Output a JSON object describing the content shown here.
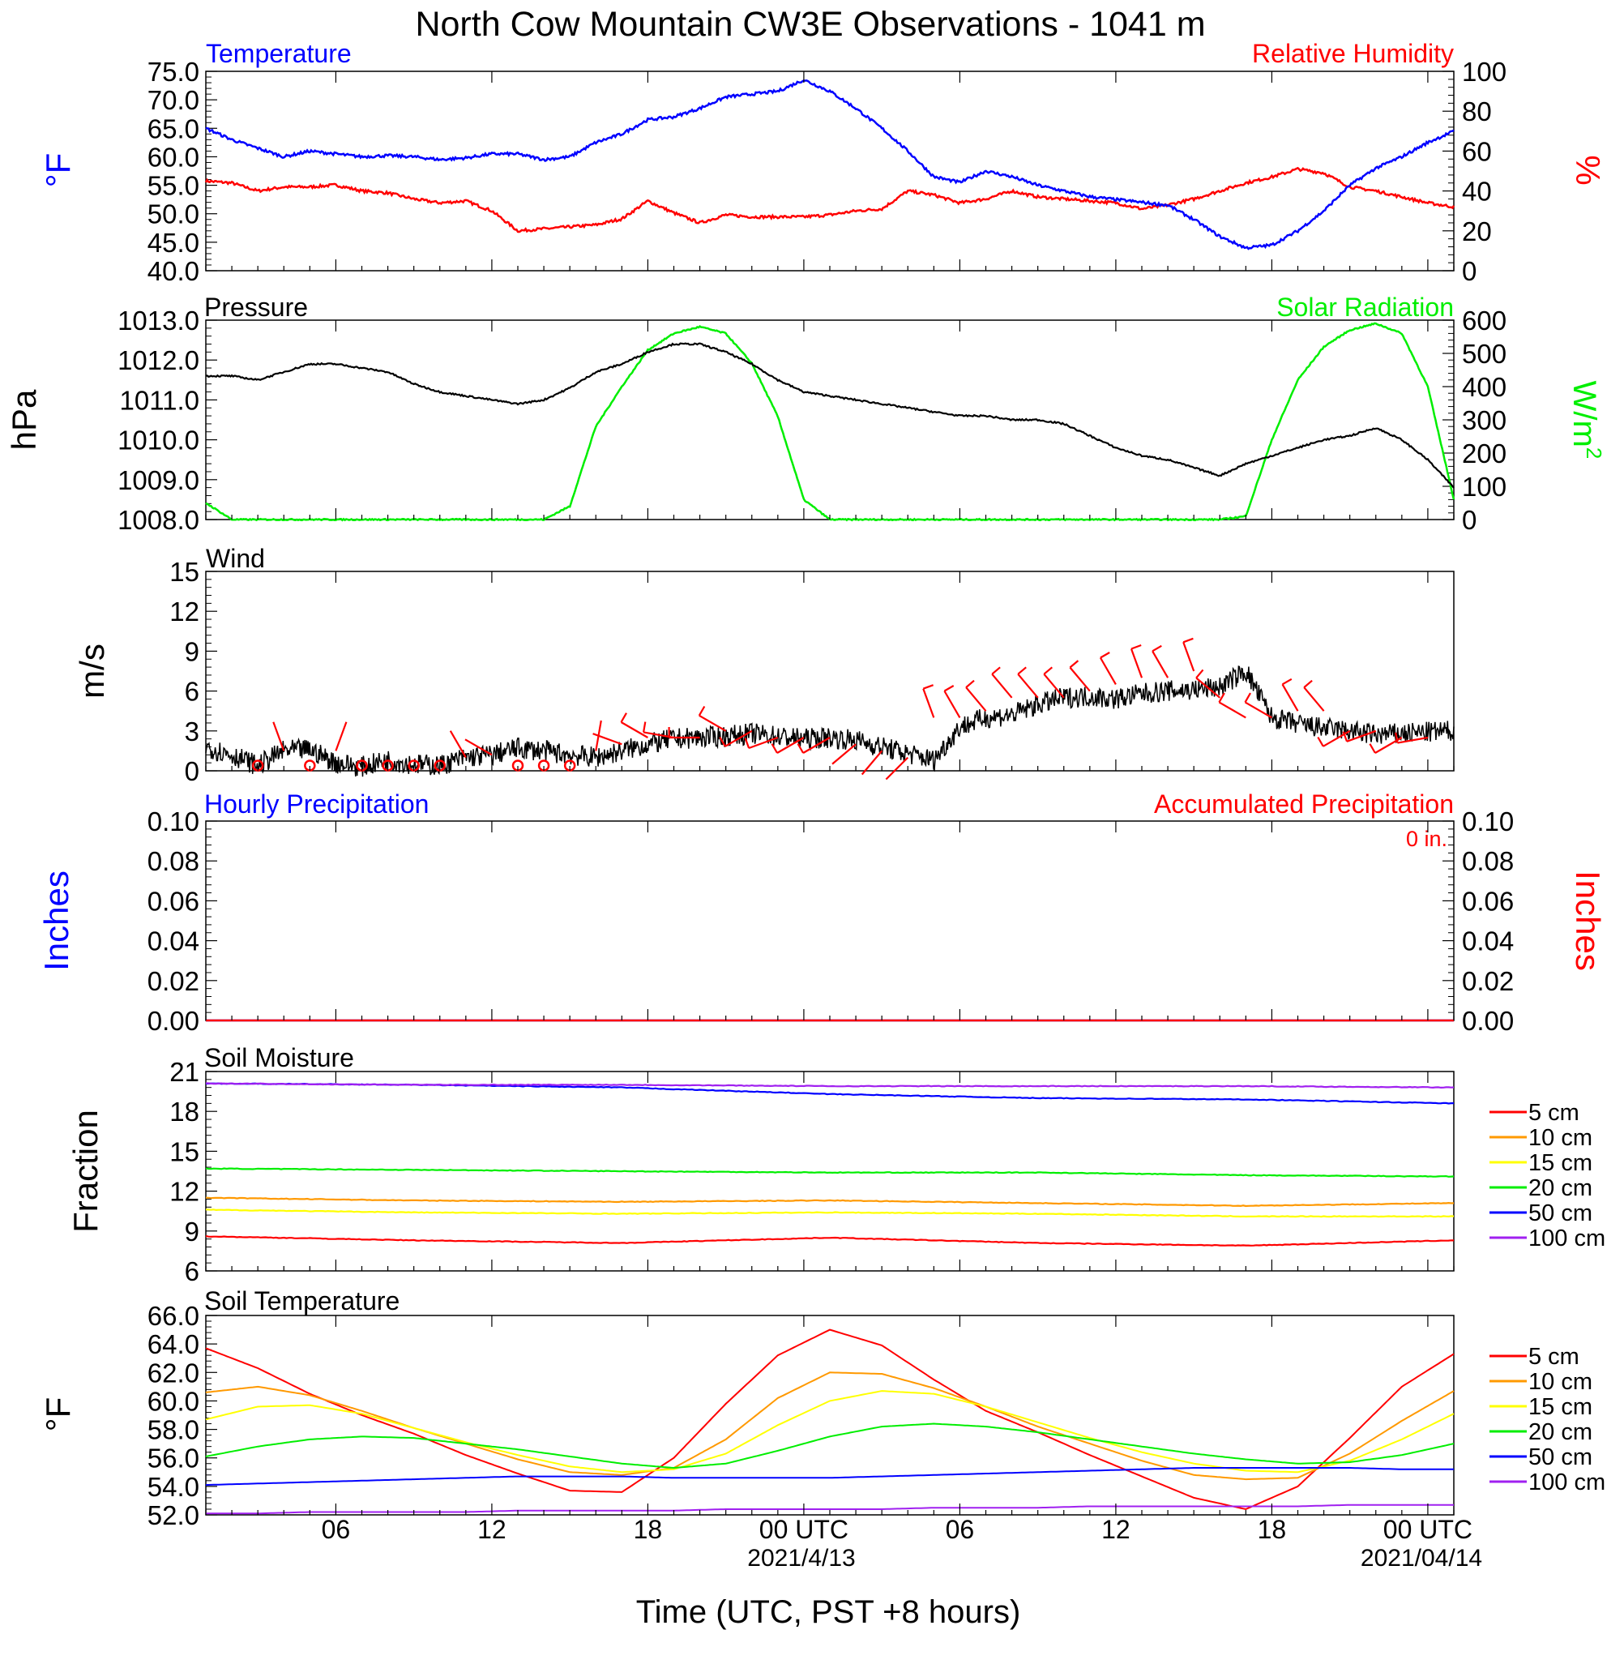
{
  "figure": {
    "title": "North Cow Mountain CW3E Observations - 1041 m",
    "xlabel": "Time (UTC, PST +8 hours)",
    "xticks": [
      "06",
      "12",
      "18",
      "00 UTC",
      "06",
      "12",
      "18",
      "00 UTC"
    ],
    "dates": [
      "2021/4/13",
      "2021/04/14"
    ],
    "colors": {
      "red": "#ff0000",
      "orange": "#ff9900",
      "yellow": "#ffff00",
      "green": "#00ee00",
      "blue": "#0000ff",
      "purple": "#a020f0",
      "black": "#000000"
    }
  },
  "chart_data": [
    {
      "type": "line",
      "panel": "temperature-humidity",
      "title_left": "Temperature",
      "title_right": "Relative Humidity",
      "ylabel_left": "°F",
      "ylabel_right": "%",
      "ylim_left": [
        40,
        75
      ],
      "ylim_right": [
        0,
        100
      ],
      "yticks_left": [
        "75.0",
        "70.0",
        "65.0",
        "60.0",
        "55.0",
        "50.0",
        "45.0",
        "40.0"
      ],
      "yticks_right": [
        "100",
        "80",
        "60",
        "40",
        "20",
        "0"
      ],
      "x_hours": [
        1,
        2,
        3,
        4,
        5,
        6,
        7,
        8,
        9,
        10,
        11,
        12,
        13,
        14,
        15,
        16,
        17,
        18,
        19,
        20,
        21,
        22,
        23,
        24,
        25,
        26,
        27,
        28,
        29,
        30,
        31,
        32,
        33,
        34,
        35,
        36,
        37,
        38,
        39,
        40,
        41,
        42,
        43,
        44,
        45,
        46,
        47,
        48,
        49
      ],
      "series": [
        {
          "name": "Temperature",
          "axis": "left",
          "color": "#0000ff",
          "values": [
            65,
            63,
            61.5,
            60,
            61,
            60.5,
            60,
            60.2,
            60,
            59.5,
            59.8,
            60.5,
            60.5,
            59.5,
            60,
            62.5,
            64,
            66.5,
            67,
            68.5,
            70.5,
            71,
            71.5,
            73.5,
            71.5,
            68.5,
            65,
            61,
            56.5,
            55.5,
            57.5,
            56.5,
            55,
            54,
            53,
            52.5,
            52,
            51.5,
            49,
            46,
            44,
            44.5,
            47,
            50.5,
            55,
            58,
            60,
            62.5,
            64.5
          ]
        },
        {
          "name": "Relative Humidity",
          "axis": "right",
          "color": "#ff0000",
          "values": [
            45,
            44,
            40,
            42,
            42,
            43,
            40,
            39,
            36,
            34,
            35,
            30,
            20,
            21,
            22,
            23,
            26,
            35,
            29,
            24,
            28,
            27,
            27,
            27,
            28,
            30,
            31,
            40,
            38,
            34,
            36,
            40,
            37,
            36,
            35,
            34,
            31,
            33,
            36,
            40,
            44,
            47,
            51,
            49,
            42,
            40,
            37,
            34,
            32
          ]
        }
      ]
    },
    {
      "type": "line",
      "panel": "pressure-solar",
      "title_left": "Pressure",
      "title_right": "Solar Radiation",
      "ylabel_left": "hPa",
      "ylabel_right": "W/m",
      "ylabel_right_sup": "2",
      "ylim_left": [
        1008,
        1013
      ],
      "ylim_right": [
        0,
        600
      ],
      "yticks_left": [
        "1013.0",
        "1012.0",
        "1011.0",
        "1010.0",
        "1009.0",
        "1008.0"
      ],
      "yticks_right": [
        "600",
        "500",
        "400",
        "300",
        "200",
        "100",
        "0"
      ],
      "x_hours": [
        1,
        2,
        3,
        4,
        5,
        6,
        7,
        8,
        9,
        10,
        11,
        12,
        13,
        14,
        15,
        16,
        17,
        18,
        19,
        20,
        21,
        22,
        23,
        24,
        25,
        26,
        27,
        28,
        29,
        30,
        31,
        32,
        33,
        34,
        35,
        36,
        37,
        38,
        39,
        40,
        41,
        42,
        43,
        44,
        45,
        46,
        47,
        48,
        49
      ],
      "series": [
        {
          "name": "Pressure",
          "axis": "left",
          "color": "#000000",
          "values": [
            1011.6,
            1011.6,
            1011.5,
            1011.7,
            1011.9,
            1011.9,
            1011.8,
            1011.7,
            1011.4,
            1011.2,
            1011.1,
            1011.0,
            1010.9,
            1011.0,
            1011.3,
            1011.7,
            1011.9,
            1012.2,
            1012.4,
            1012.4,
            1012.2,
            1011.9,
            1011.5,
            1011.2,
            1011.1,
            1011.0,
            1010.9,
            1010.8,
            1010.7,
            1010.6,
            1010.6,
            1010.5,
            1010.5,
            1010.4,
            1010.1,
            1009.8,
            1009.6,
            1009.5,
            1009.3,
            1009.1,
            1009.4,
            1009.6,
            1009.8,
            1010.0,
            1010.1,
            1010.3,
            1010.0,
            1009.5,
            1008.8
          ]
        },
        {
          "name": "Solar Radiation",
          "axis": "right",
          "color": "#00ee00",
          "values": [
            50,
            0,
            0,
            0,
            0,
            0,
            0,
            0,
            0,
            0,
            0,
            0,
            0,
            0,
            40,
            280,
            400,
            510,
            560,
            580,
            560,
            470,
            310,
            60,
            0,
            0,
            0,
            0,
            0,
            0,
            0,
            0,
            0,
            0,
            0,
            0,
            0,
            0,
            0,
            0,
            10,
            240,
            420,
            520,
            570,
            590,
            560,
            400,
            60
          ]
        }
      ]
    },
    {
      "type": "line",
      "panel": "wind",
      "title_left": "Wind",
      "ylabel": "m/s",
      "ylim": [
        0,
        15
      ],
      "yticks": [
        "15",
        "12",
        "9",
        "6",
        "3",
        "0"
      ],
      "x_hours": [
        1,
        2,
        3,
        4,
        5,
        6,
        7,
        8,
        9,
        10,
        11,
        12,
        13,
        14,
        15,
        16,
        17,
        18,
        19,
        20,
        21,
        22,
        23,
        24,
        25,
        26,
        27,
        28,
        29,
        30,
        31,
        32,
        33,
        34,
        35,
        36,
        37,
        38,
        39,
        40,
        41,
        42,
        43,
        44,
        45,
        46,
        47,
        48,
        49
      ],
      "series": [
        {
          "name": "",
          "color": "#000000",
          "values": [
            1.8,
            1.2,
            0.4,
            1.5,
            1.6,
            0.6,
            0.3,
            0.8,
            0.5,
            0.4,
            1.0,
            1.2,
            1.7,
            1.5,
            1.2,
            1.0,
            1.5,
            2.0,
            2.4,
            2.5,
            2.6,
            2.8,
            2.6,
            2.4,
            2.5,
            2.3,
            1.8,
            1.3,
            0.8,
            3.3,
            4.0,
            4.2,
            5.0,
            5.5,
            5.6,
            5.4,
            5.8,
            6.0,
            6.1,
            6.3,
            7.5,
            4.0,
            3.5,
            3.2,
            3.0,
            2.7,
            2.8,
            2.9,
            3.0
          ]
        }
      ],
      "barbs_calm_hours": [
        3,
        5,
        7,
        8,
        9,
        10,
        13,
        14,
        15
      ],
      "barbs": [
        {
          "hour": 4,
          "speed": 1.5,
          "dir": 340
        },
        {
          "hour": 6,
          "speed": 1.5,
          "dir": 20
        },
        {
          "hour": 11,
          "speed": 1.0,
          "dir": 330
        },
        {
          "hour": 12,
          "speed": 1.2,
          "dir": 300
        },
        {
          "hour": 16,
          "speed": 1.5,
          "dir": 10
        },
        {
          "hour": 17,
          "speed": 2.0,
          "dir": 290
        },
        {
          "hour": 18,
          "speed": 2.5,
          "dir": 300
        },
        {
          "hour": 19,
          "speed": 2.5,
          "dir": 280
        },
        {
          "hour": 20,
          "speed": 2.5,
          "dir": 270
        },
        {
          "hour": 21,
          "speed": 3.0,
          "dir": 300
        },
        {
          "hour": 22,
          "speed": 3.0,
          "dir": 240
        },
        {
          "hour": 23,
          "speed": 2.5,
          "dir": 250
        },
        {
          "hour": 24,
          "speed": 2.5,
          "dir": 240
        },
        {
          "hour": 25,
          "speed": 2.5,
          "dir": 240
        },
        {
          "hour": 26,
          "speed": 2.0,
          "dir": 230
        },
        {
          "hour": 27,
          "speed": 1.5,
          "dir": 220
        },
        {
          "hour": 28,
          "speed": 1.0,
          "dir": 225
        },
        {
          "hour": 29,
          "speed": 4.0,
          "dir": 340
        },
        {
          "hour": 30,
          "speed": 4.0,
          "dir": 330
        },
        {
          "hour": 31,
          "speed": 4.5,
          "dir": 320
        },
        {
          "hour": 32,
          "speed": 5.5,
          "dir": 320
        },
        {
          "hour": 33,
          "speed": 5.5,
          "dir": 320
        },
        {
          "hour": 34,
          "speed": 5.5,
          "dir": 320
        },
        {
          "hour": 35,
          "speed": 6.0,
          "dir": 320
        },
        {
          "hour": 36,
          "speed": 6.5,
          "dir": 330
        },
        {
          "hour": 37,
          "speed": 7.0,
          "dir": 340
        },
        {
          "hour": 38,
          "speed": 7.0,
          "dir": 330
        },
        {
          "hour": 39,
          "speed": 7.5,
          "dir": 340
        },
        {
          "hour": 40,
          "speed": 5.5,
          "dir": 310
        },
        {
          "hour": 41,
          "speed": 4.0,
          "dir": 300
        },
        {
          "hour": 42,
          "speed": 4.0,
          "dir": 300
        },
        {
          "hour": 43,
          "speed": 4.5,
          "dir": 330
        },
        {
          "hour": 44,
          "speed": 4.5,
          "dir": 320
        },
        {
          "hour": 45,
          "speed": 3.0,
          "dir": 240
        },
        {
          "hour": 46,
          "speed": 3.0,
          "dir": 250
        },
        {
          "hour": 47,
          "speed": 2.5,
          "dir": 240
        },
        {
          "hour": 48,
          "speed": 2.5,
          "dir": 260
        }
      ]
    },
    {
      "type": "line",
      "panel": "precipitation",
      "title_left": "Hourly Precipitation",
      "title_right": "Accumulated Precipitation",
      "accum_label": "0 in.",
      "ylabel_left": "Inches",
      "ylabel_right": "Inches",
      "ylim": [
        0,
        0.1
      ],
      "yticks": [
        "0.10",
        "0.08",
        "0.06",
        "0.04",
        "0.02",
        "0.00"
      ],
      "x_hours": [
        1,
        49
      ],
      "series": [
        {
          "name": "Hourly Precipitation",
          "color": "#0000ff",
          "values": [
            0,
            0
          ]
        },
        {
          "name": "Accumulated Precipitation",
          "color": "#ff0000",
          "values": [
            0,
            0
          ]
        }
      ]
    },
    {
      "type": "line",
      "panel": "soil-moisture",
      "title_left": "Soil Moisture",
      "ylabel": "Fraction",
      "ylim": [
        6,
        21
      ],
      "yticks": [
        "21",
        "18",
        "15",
        "12",
        "9",
        "6"
      ],
      "x_hours": [
        1,
        9,
        17,
        25,
        33,
        41,
        49
      ],
      "series": [
        {
          "name": "5 cm",
          "color": "#ff0000",
          "values": [
            8.6,
            8.3,
            8.1,
            8.5,
            8.1,
            7.9,
            8.3
          ]
        },
        {
          "name": "10 cm",
          "color": "#ff9900",
          "values": [
            11.5,
            11.3,
            11.2,
            11.3,
            11.1,
            10.9,
            11.1
          ]
        },
        {
          "name": "15 cm",
          "color": "#ffff00",
          "values": [
            10.6,
            10.4,
            10.3,
            10.4,
            10.3,
            10.1,
            10.1
          ]
        },
        {
          "name": "20 cm",
          "color": "#00ee00",
          "values": [
            13.7,
            13.6,
            13.5,
            13.4,
            13.4,
            13.2,
            13.1
          ]
        },
        {
          "name": "50 cm",
          "color": "#0000ff",
          "values": [
            20.1,
            20.0,
            19.8,
            19.3,
            19.0,
            18.9,
            18.6
          ]
        },
        {
          "name": "100 cm",
          "color": "#a020f0",
          "values": [
            20.1,
            20.0,
            20.0,
            19.9,
            19.9,
            19.9,
            19.8
          ]
        }
      ]
    },
    {
      "type": "line",
      "panel": "soil-temperature",
      "title_left": "Soil Temperature",
      "ylabel": "°F",
      "ylim": [
        52,
        66
      ],
      "yticks": [
        "66.0",
        "64.0",
        "62.0",
        "60.0",
        "58.0",
        "56.0",
        "54.0",
        "52.0"
      ],
      "x_hours": [
        1,
        3,
        5,
        7,
        9,
        11,
        13,
        15,
        17,
        19,
        21,
        23,
        25,
        27,
        29,
        31,
        33,
        35,
        37,
        39,
        41,
        43,
        45,
        47,
        49
      ],
      "series": [
        {
          "name": "5 cm",
          "color": "#ff0000",
          "values": [
            63.7,
            62.3,
            60.5,
            59.0,
            57.7,
            56.2,
            54.9,
            53.7,
            53.6,
            56.0,
            59.8,
            63.2,
            65.0,
            63.9,
            61.5,
            59.3,
            57.8,
            56.2,
            54.7,
            53.2,
            52.4,
            54.0,
            57.4,
            61.0,
            63.3
          ]
        },
        {
          "name": "10 cm",
          "color": "#ff9900",
          "values": [
            60.6,
            61.0,
            60.4,
            59.3,
            58.1,
            57.0,
            55.9,
            55.0,
            54.8,
            55.3,
            57.3,
            60.2,
            62.0,
            61.9,
            60.9,
            59.6,
            58.2,
            57.0,
            55.8,
            54.8,
            54.5,
            54.6,
            56.3,
            58.6,
            60.7
          ]
        },
        {
          "name": "15 cm",
          "color": "#ffff00",
          "values": [
            58.7,
            59.6,
            59.7,
            59.1,
            58.1,
            57.1,
            56.2,
            55.4,
            55.0,
            55.2,
            56.3,
            58.3,
            60.0,
            60.7,
            60.5,
            59.6,
            58.5,
            57.4,
            56.4,
            55.6,
            55.1,
            55.0,
            55.8,
            57.3,
            59.1
          ]
        },
        {
          "name": "20 cm",
          "color": "#00ee00",
          "values": [
            56.1,
            56.8,
            57.3,
            57.5,
            57.4,
            57.0,
            56.6,
            56.1,
            55.6,
            55.3,
            55.6,
            56.5,
            57.5,
            58.2,
            58.4,
            58.2,
            57.8,
            57.3,
            56.8,
            56.3,
            55.9,
            55.6,
            55.7,
            56.2,
            57.0
          ]
        },
        {
          "name": "50 cm",
          "color": "#0000ff",
          "values": [
            54.1,
            54.2,
            54.3,
            54.4,
            54.5,
            54.6,
            54.7,
            54.7,
            54.7,
            54.6,
            54.6,
            54.6,
            54.6,
            54.7,
            54.8,
            54.9,
            55.0,
            55.1,
            55.2,
            55.3,
            55.3,
            55.3,
            55.3,
            55.2,
            55.2
          ]
        },
        {
          "name": "100 cm",
          "color": "#a020f0",
          "values": [
            52.1,
            52.1,
            52.2,
            52.2,
            52.2,
            52.2,
            52.3,
            52.3,
            52.3,
            52.3,
            52.4,
            52.4,
            52.4,
            52.4,
            52.5,
            52.5,
            52.5,
            52.6,
            52.6,
            52.6,
            52.6,
            52.6,
            52.7,
            52.7,
            52.7
          ]
        }
      ]
    }
  ]
}
